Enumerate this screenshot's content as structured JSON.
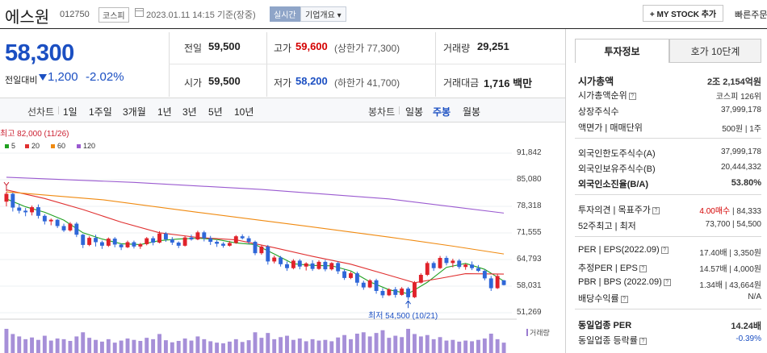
{
  "header": {
    "name": "에스원",
    "code": "012750",
    "market": "코스피",
    "date_text": "2023.01.11 14:15 기준(장중)",
    "realtime": "실시간",
    "company_btn": "기업개요 ▾",
    "mystock_btn": "+ MY STOCK 추가",
    "quick_order": "빠른주문"
  },
  "price": {
    "current": "58,300",
    "change_label": "전일대비",
    "change": "1,200",
    "change_pct": "-2.02%",
    "quotes": {
      "prev_label": "전일",
      "prev": "59,500",
      "high_label": "고가",
      "high": "59,600",
      "upper_limit": "(상한가 77,300)",
      "volume_label": "거래량",
      "volume": "29,251",
      "open_label": "시가",
      "open": "59,500",
      "low_label": "저가",
      "low": "58,200",
      "lower_limit": "(하한가 41,700)",
      "amount_label": "거래대금",
      "amount": "1,716 백만"
    }
  },
  "period_tabs": {
    "line_label": "선차트",
    "line": [
      "1일",
      "1주일",
      "3개월",
      "1년",
      "3년",
      "5년",
      "10년"
    ],
    "candle_label": "봉차트",
    "candle": [
      "일봉",
      "주봉",
      "월봉"
    ],
    "active": "주봉"
  },
  "chart_data": {
    "type": "candlestick",
    "legend": [
      {
        "name": "5",
        "color": "#20a020"
      },
      {
        "name": "20",
        "color": "#e03030"
      },
      {
        "name": "60",
        "color": "#f08a10"
      },
      {
        "name": "120",
        "color": "#9a5ad0"
      }
    ],
    "yticks": [
      "91,842",
      "85,080",
      "78,318",
      "71,555",
      "64,793",
      "58,031",
      "51,269"
    ],
    "ylim": [
      51269,
      91842
    ],
    "high_note": "최고 82,000 (11/26)",
    "low_note": "최저 54,500 (10/21)",
    "volume_label": "거래량",
    "candles": [
      [
        79500,
        82000,
        78300,
        81500
      ],
      [
        81500,
        81800,
        77000,
        78000
      ],
      [
        78000,
        79000,
        76500,
        77200
      ],
      [
        77200,
        77900,
        75800,
        76800
      ],
      [
        76800,
        78500,
        76000,
        78100
      ],
      [
        78100,
        78800,
        75200,
        75900
      ],
      [
        75900,
        76300,
        73700,
        74500
      ],
      [
        74500,
        75200,
        73500,
        74900
      ],
      [
        74900,
        75100,
        72800,
        73300
      ],
      [
        73300,
        73900,
        71800,
        72200
      ],
      [
        72200,
        74300,
        71900,
        73900
      ],
      [
        73900,
        74300,
        70500,
        71100
      ],
      [
        71100,
        71300,
        67700,
        68500
      ],
      [
        68500,
        70700,
        68200,
        70300
      ],
      [
        70300,
        71100,
        68100,
        69200
      ],
      [
        69200,
        69600,
        67500,
        68300
      ],
      [
        68300,
        70400,
        68000,
        70100
      ],
      [
        70100,
        70500,
        67900,
        68600
      ],
      [
        68600,
        68900,
        67200,
        67900
      ],
      [
        67900,
        69600,
        67700,
        69200
      ],
      [
        69200,
        69600,
        67600,
        68100
      ],
      [
        68100,
        69000,
        67500,
        68700
      ],
      [
        68700,
        70500,
        68400,
        70200
      ],
      [
        70200,
        70700,
        68400,
        69100
      ],
      [
        69100,
        72000,
        68900,
        71400
      ],
      [
        71400,
        71800,
        69300,
        69900
      ],
      [
        69900,
        70500,
        68500,
        69100
      ],
      [
        69100,
        69400,
        67700,
        68300
      ],
      [
        68300,
        70800,
        68100,
        70400
      ],
      [
        70400,
        71100,
        69600,
        69900
      ],
      [
        69900,
        72100,
        69700,
        71700
      ],
      [
        71700,
        72100,
        69400,
        70200
      ],
      [
        70200,
        70800,
        68500,
        69300
      ],
      [
        69300,
        69700,
        68000,
        68800
      ],
      [
        68800,
        69200,
        67800,
        68300
      ],
      [
        68300,
        69500,
        68100,
        69000
      ],
      [
        69000,
        71000,
        68800,
        70700
      ],
      [
        70700,
        71200,
        69900,
        70200
      ],
      [
        70200,
        70800,
        68700,
        69300
      ],
      [
        69300,
        69600,
        65900,
        66400
      ],
      [
        66400,
        68400,
        66000,
        68100
      ],
      [
        68100,
        68500,
        63500,
        64300
      ],
      [
        64300,
        65800,
        63800,
        65300
      ],
      [
        65300,
        65700,
        63000,
        63600
      ],
      [
        63600,
        64300,
        61900,
        62600
      ],
      [
        62600,
        64900,
        62300,
        64500
      ],
      [
        64500,
        64900,
        62300,
        63000
      ],
      [
        63000,
        64100,
        62000,
        63800
      ],
      [
        63800,
        64600,
        61900,
        62400
      ],
      [
        62400,
        64600,
        62200,
        64200
      ],
      [
        64200,
        64700,
        61800,
        62300
      ],
      [
        62300,
        64100,
        62000,
        63900
      ],
      [
        63900,
        64300,
        61100,
        61800
      ],
      [
        61800,
        62400,
        59600,
        60100
      ],
      [
        60100,
        61700,
        59800,
        61300
      ],
      [
        61300,
        61700,
        58100,
        58900
      ],
      [
        58900,
        59400,
        57100,
        57700
      ],
      [
        57700,
        59800,
        57500,
        59500
      ],
      [
        59500,
        59900,
        56100,
        56800
      ],
      [
        56800,
        57500,
        55000,
        55700
      ],
      [
        55700,
        57500,
        55500,
        57200
      ],
      [
        57200,
        57800,
        55100,
        55800
      ],
      [
        55800,
        57800,
        55600,
        57400
      ],
      [
        57400,
        57800,
        54500,
        55200
      ],
      [
        55200,
        59300,
        55000,
        58900
      ],
      [
        58900,
        61300,
        58700,
        60900
      ],
      [
        60900,
        64300,
        60600,
        63900
      ],
      [
        63900,
        64300,
        61900,
        62600
      ],
      [
        62600,
        65700,
        62400,
        65200
      ],
      [
        65200,
        65700,
        63300,
        63900
      ],
      [
        63900,
        65000,
        62800,
        64500
      ],
      [
        64500,
        64900,
        62400,
        62900
      ],
      [
        62900,
        63800,
        62200,
        63500
      ],
      [
        63500,
        64300,
        62100,
        62600
      ],
      [
        62600,
        63400,
        61600,
        61900
      ],
      [
        61900,
        62300,
        59500,
        60000
      ],
      [
        60000,
        60600,
        56800,
        57500
      ],
      [
        57500,
        61000,
        57300,
        60600
      ],
      [
        59500,
        59600,
        58200,
        58300
      ]
    ],
    "volumes": [
      70,
      55,
      48,
      40,
      45,
      38,
      50,
      36,
      42,
      40,
      35,
      48,
      60,
      44,
      38,
      33,
      40,
      30,
      36,
      42,
      38,
      35,
      44,
      40,
      55,
      37,
      31,
      35,
      42,
      36,
      48,
      40,
      34,
      30,
      28,
      33,
      40,
      32,
      37,
      60,
      44,
      58,
      40,
      46,
      50,
      38,
      42,
      34,
      40,
      36,
      38,
      34,
      45,
      52,
      40,
      56,
      60,
      48,
      58,
      66,
      44,
      50,
      46,
      70,
      55,
      48,
      52,
      40,
      46,
      36,
      38,
      33,
      36,
      34,
      38,
      42,
      56,
      40,
      30
    ],
    "ma": {
      "5": [
        [
          0,
          80200
        ],
        [
          3,
          78200
        ],
        [
          6,
          76800
        ],
        [
          9,
          74800
        ],
        [
          12,
          71600
        ],
        [
          15,
          70000
        ],
        [
          18,
          68800
        ],
        [
          21,
          68600
        ],
        [
          24,
          69600
        ],
        [
          27,
          70000
        ],
        [
          30,
          70200
        ],
        [
          33,
          69900
        ],
        [
          36,
          69000
        ],
        [
          39,
          68600
        ],
        [
          42,
          66200
        ],
        [
          45,
          63700
        ],
        [
          48,
          63300
        ],
        [
          51,
          63200
        ],
        [
          54,
          61900
        ],
        [
          57,
          59100
        ],
        [
          60,
          57100
        ],
        [
          63,
          56100
        ],
        [
          66,
          59000
        ],
        [
          69,
          62800
        ],
        [
          72,
          63800
        ],
        [
          75,
          62300
        ],
        [
          78,
          59300
        ]
      ],
      "20": [
        [
          0,
          82500
        ],
        [
          6,
          80300
        ],
        [
          12,
          77500
        ],
        [
          18,
          74300
        ],
        [
          24,
          71600
        ],
        [
          30,
          70400
        ],
        [
          36,
          69800
        ],
        [
          42,
          67800
        ],
        [
          48,
          65600
        ],
        [
          54,
          63600
        ],
        [
          60,
          60800
        ],
        [
          64,
          58900
        ],
        [
          68,
          60000
        ],
        [
          72,
          61200
        ],
        [
          78,
          61100
        ]
      ],
      "60": [
        [
          0,
          82000
        ],
        [
          15,
          80000
        ],
        [
          30,
          76800
        ],
        [
          45,
          73700
        ],
        [
          60,
          70500
        ],
        [
          70,
          68200
        ],
        [
          78,
          66200
        ]
      ],
      "120": [
        [
          0,
          85700
        ],
        [
          20,
          84400
        ],
        [
          40,
          82600
        ],
        [
          60,
          80200
        ],
        [
          70,
          78200
        ],
        [
          78,
          76600
        ]
      ]
    }
  },
  "right_panel": {
    "tabs": [
      "투자정보",
      "호가 10단계"
    ],
    "rows": [
      {
        "label": "시가총액",
        "value": "2조 2,154억원",
        "bold": true
      },
      {
        "label": "시가총액순위",
        "value": "코스피 126위"
      },
      {
        "label": "상장주식수",
        "value": "37,999,178"
      },
      {
        "label": "액면가 | 매매단위",
        "value": "500원 | 1주"
      },
      {
        "label": "외국인한도주식수(A)",
        "value": "37,999,178"
      },
      {
        "label": "외국인보유주식수(B)",
        "value": "20,444,332"
      },
      {
        "label": "외국인소진율(B/A)",
        "value": "53.80%",
        "bold": true
      },
      {
        "label": "투자의견 | 목표주가",
        "value_a": "4.00매수",
        "value_b": "84,333"
      },
      {
        "label": "52주최고 | 최저",
        "value": "73,700 | 54,500"
      },
      {
        "label": "PER | EPS(2022.09)",
        "value": "17.40배 | 3,350원"
      },
      {
        "label": "추정PER | EPS",
        "value": "14.57배 | 4,000원"
      },
      {
        "label": "PBR | BPS (2022.09)",
        "value": "1.34배 | 43,664원"
      },
      {
        "label": "배당수익률",
        "value": "N/A"
      },
      {
        "label": "동일업종 PER",
        "value": "14.24배",
        "bold": true
      },
      {
        "label": "동일업종 등락률",
        "value": "-0.39%"
      }
    ]
  }
}
